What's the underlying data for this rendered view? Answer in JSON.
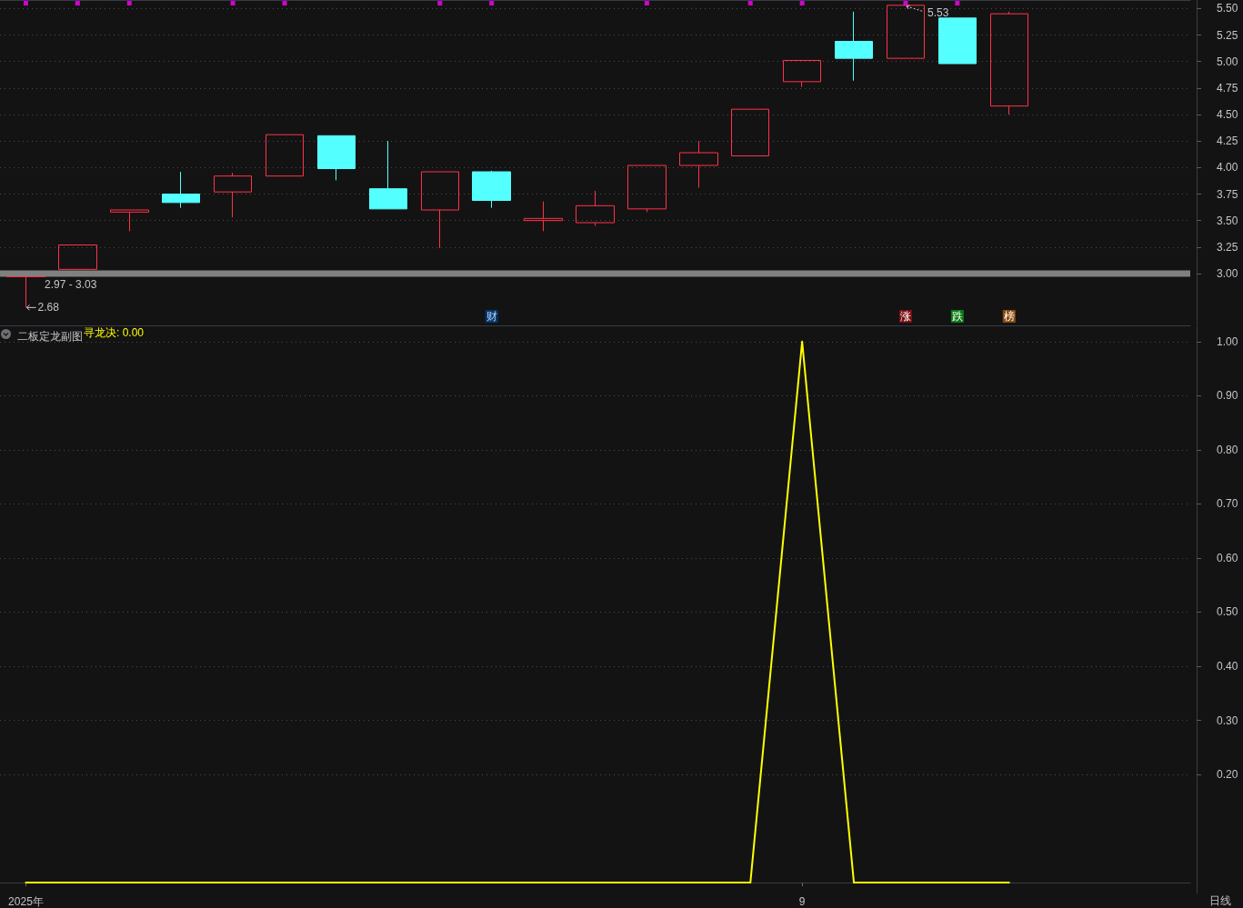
{
  "chart_data": [
    {
      "type": "candlestick",
      "categories": [
        null,
        null,
        null,
        null,
        null,
        null,
        null,
        null,
        null,
        null,
        null,
        null,
        null,
        null,
        null,
        null,
        null,
        null,
        null,
        null,
        null,
        null,
        null
      ],
      "series": [
        {
          "ohlc": [
            [
              2.97,
              2.97,
              2.68,
              2.97
            ],
            [
              3.04,
              3.27,
              3.04,
              3.27
            ],
            [
              3.58,
              3.6,
              3.4,
              3.6
            ],
            [
              3.75,
              3.96,
              3.62,
              3.67
            ],
            [
              3.77,
              3.95,
              3.53,
              3.92
            ],
            [
              3.92,
              4.31,
              3.92,
              4.31
            ],
            [
              4.3,
              4.3,
              3.88,
              3.99
            ],
            [
              3.8,
              4.25,
              3.61,
              3.61
            ],
            [
              3.6,
              3.96,
              3.24,
              3.96
            ],
            [
              3.96,
              3.97,
              3.62,
              3.69
            ],
            [
              3.5,
              3.68,
              3.4,
              3.52
            ],
            [
              3.48,
              3.78,
              3.45,
              3.64
            ],
            [
              3.61,
              4.02,
              3.58,
              4.02
            ],
            [
              4.02,
              4.25,
              3.81,
              4.14
            ],
            [
              4.11,
              4.55,
              4.11,
              4.55
            ],
            [
              4.81,
              5.01,
              4.76,
              5.01
            ],
            [
              5.19,
              5.47,
              4.82,
              5.03
            ],
            [
              5.03,
              5.53,
              5.03,
              5.53
            ],
            [
              5.41,
              5.41,
              4.98,
              4.98
            ],
            [
              4.58,
              5.47,
              4.5,
              5.45
            ],
            null,
            null,
            null
          ],
          "colors": [
            "#ff3246",
            "#ff3246",
            "#ff3246",
            "#54ffff",
            "#ff3246",
            "#ff3246",
            "#54ffff",
            "#54ffff",
            "#ff3246",
            "#54ffff",
            "#ff3246",
            "#ff3246",
            "#ff3246",
            "#ff3246",
            "#ff3246",
            "#ff3246",
            "#54ffff",
            "#ff3246",
            "#54ffff",
            "#ff3246",
            null,
            null,
            null
          ]
        },
        {
          "type": "scatter",
          "color": "#ff00ff",
          "values": [
            5.55,
            5.55,
            5.55,
            null,
            5.55,
            5.55,
            null,
            null,
            5.55,
            5.55,
            null,
            null,
            5.55,
            null,
            5.55,
            5.55,
            null,
            5.55,
            5.55,
            null,
            null,
            null,
            null
          ]
        }
      ],
      "ylim": [
        2.52,
        5.58
      ],
      "yticks": [
        {
          "value": 3,
          "label": "3.00"
        },
        3.25,
        {
          "value": 3.5,
          "label": "3.50"
        },
        3.75,
        {
          "value": 4,
          "label": "4.00"
        },
        4.25,
        {
          "value": 4.5,
          "label": "4.50"
        },
        4.75,
        {
          "value": 5,
          "label": "5.00"
        },
        5.25,
        {
          "value": 5.5,
          "label": "5.50"
        }
      ],
      "bands": [
        {
          "axis": "y",
          "from": 2.97,
          "to": 3.03,
          "label": "2.97 - 3.03",
          "color": "#808080"
        }
      ],
      "annotations": [
        "财",
        "涨",
        "跌",
        "榜",
        "2.68",
        "5.53"
      ],
      "grid": "y",
      "marker": "square"
    },
    {
      "type": "line",
      "title": "二板定龙副图",
      "categories": [
        "2025年",
        null,
        null,
        null,
        null,
        null,
        null,
        null,
        null,
        null,
        null,
        null,
        null,
        null,
        null,
        "9",
        null,
        null,
        null,
        null,
        null,
        null,
        null
      ],
      "series": [
        {
          "name": "寻龙决: 0.00",
          "color": "#ffff00",
          "values": [
            0,
            0,
            0,
            0,
            0,
            0,
            0,
            0,
            0,
            0,
            0,
            0,
            0,
            0,
            0,
            1,
            0,
            0,
            0,
            0,
            null,
            null,
            null
          ]
        }
      ],
      "ylim": [
        -0.02,
        1.03
      ],
      "yticks": [
        {
          "value": 0.2,
          "label": "0.20"
        },
        {
          "value": 0.3,
          "label": "0.30"
        },
        {
          "value": 0.4,
          "label": "0.40"
        },
        {
          "value": 0.5,
          "label": "0.50"
        },
        {
          "value": 0.6,
          "label": "0.60"
        },
        {
          "value": 0.7,
          "label": "0.70"
        },
        {
          "value": 0.8,
          "label": "0.80"
        },
        {
          "value": 0.9,
          "label": "0.90"
        },
        {
          "value": 1,
          "label": "1.00"
        }
      ],
      "annotations": [
        "日线"
      ],
      "grid": "y",
      "marker": "none",
      "line_style": "solid"
    }
  ]
}
